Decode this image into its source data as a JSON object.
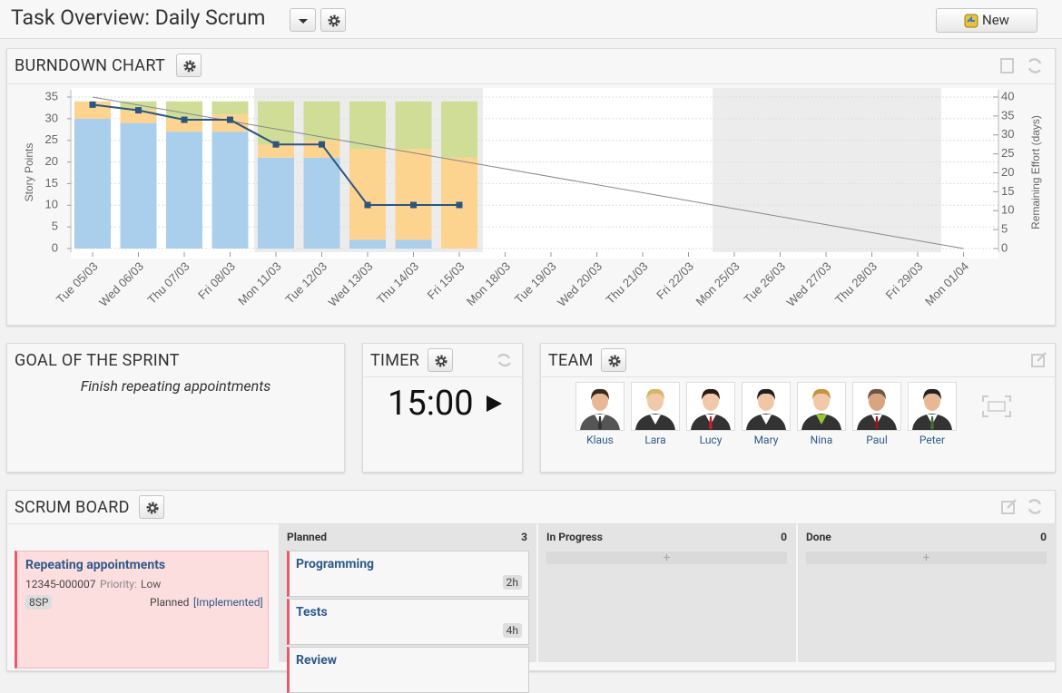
{
  "header": {
    "title": "Task Overview: Daily Scrum",
    "new_button": "New"
  },
  "burndown": {
    "title": "BURNDOWN CHART"
  },
  "chart_data": {
    "type": "bar",
    "stacked": true,
    "ylabel": "Story Points",
    "y2label": "Remaining Effort (days)",
    "categories": [
      "Tue 05/03",
      "Wed 06/03",
      "Thu 07/03",
      "Fri 08/03",
      "Mon 11/03",
      "Tue 12/03",
      "Wed 13/03",
      "Thu 14/03",
      "Fri 15/03",
      "Mon 18/03",
      "Tue 19/03",
      "Wed 20/03",
      "Thu 21/03",
      "Fri 22/03",
      "Mon 25/03",
      "Tue 26/03",
      "Wed 27/03",
      "Thu 28/03",
      "Fri 29/03",
      "Mon 01/04"
    ],
    "series": [
      {
        "color": "#a9cfec",
        "values": [
          30,
          29,
          27,
          27,
          21,
          21,
          2,
          2,
          0,
          null,
          null,
          null,
          null,
          null,
          null,
          null,
          null,
          null,
          null,
          null
        ]
      },
      {
        "color": "#fdd390",
        "values": [
          4,
          3,
          3,
          4,
          3,
          4,
          21,
          21,
          21,
          null,
          null,
          null,
          null,
          null,
          null,
          null,
          null,
          null,
          null,
          null
        ]
      },
      {
        "color": "#cfdd96",
        "values": [
          0,
          2,
          4,
          3,
          10,
          9,
          11,
          11,
          13,
          null,
          null,
          null,
          null,
          null,
          null,
          null,
          null,
          null,
          null,
          null
        ]
      },
      {
        "type": "line",
        "axis": "y2",
        "color": "#2c5580",
        "values": [
          38,
          36.5,
          34,
          34,
          27.5,
          27.5,
          11.5,
          11.5,
          11.5,
          null,
          null,
          null,
          null,
          null,
          null,
          null,
          null,
          null,
          null,
          null
        ]
      }
    ],
    "ideal_line": {
      "color": "#888888",
      "start": 35,
      "end": 0
    },
    "ylim": [
      0,
      35
    ],
    "yticks": [
      0,
      5,
      10,
      15,
      20,
      25,
      30,
      35
    ],
    "y2lim": [
      0,
      40
    ],
    "y2ticks": [
      0,
      5,
      10,
      15,
      20,
      25,
      30,
      35,
      40
    ],
    "grid": true
  },
  "goal": {
    "title": "GOAL OF THE SPRINT",
    "text": "Finish repeating appointments"
  },
  "timer": {
    "title": "TIMER",
    "time": "15:00"
  },
  "team": {
    "title": "TEAM",
    "members": [
      "Klaus",
      "Lara",
      "Lucy",
      "Mary",
      "Nina",
      "Paul",
      "Peter"
    ]
  },
  "board": {
    "title": "SCRUM BOARD",
    "story": {
      "title": "Repeating appointments",
      "id": "12345-000007",
      "priority_label": "Priority:",
      "priority": "Low",
      "points": "8SP",
      "status": "Planned",
      "link": "[Implemented]"
    },
    "columns": [
      {
        "name": "Planned",
        "count": 3,
        "tasks": [
          {
            "title": "Programming",
            "effort": "2h"
          },
          {
            "title": "Tests",
            "effort": "4h"
          },
          {
            "title": "Review"
          }
        ]
      },
      {
        "name": "In Progress",
        "count": 0
      },
      {
        "name": "Done",
        "count": 0
      }
    ]
  }
}
